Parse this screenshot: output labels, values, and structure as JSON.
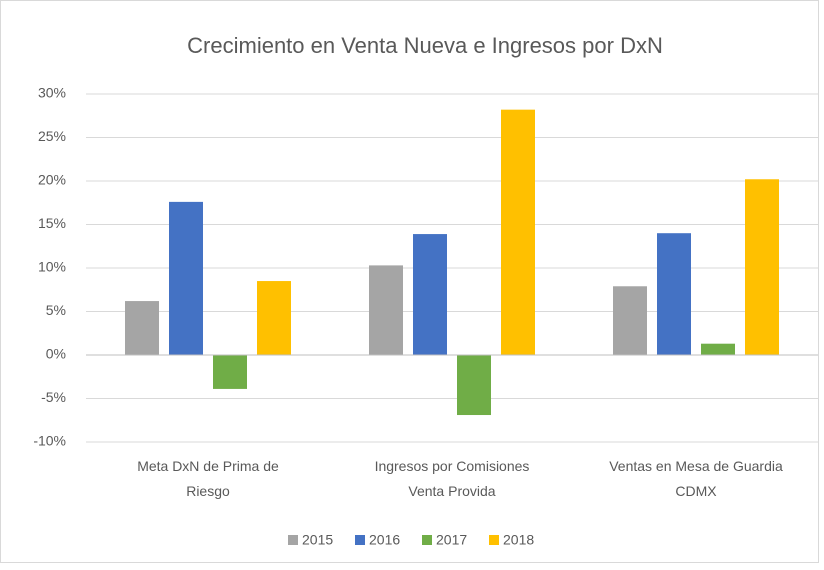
{
  "chart_data": {
    "type": "bar",
    "title": "Crecimiento en Venta Nueva e Ingresos por DxN",
    "categories": [
      "Meta DxN de Prima de Riesgo",
      "Ingresos por Comisiones Venta Provida",
      "Ventas en Mesa de Guardia CDMX"
    ],
    "series": [
      {
        "name": "2015",
        "color": "#a5a5a5",
        "values": [
          6.2,
          10.3,
          7.9
        ]
      },
      {
        "name": "2016",
        "color": "#4472c4",
        "values": [
          17.6,
          13.9,
          14.0
        ]
      },
      {
        "name": "2017",
        "color": "#70ad47",
        "values": [
          -3.9,
          -6.9,
          1.3
        ]
      },
      {
        "name": "2018",
        "color": "#ffc000",
        "values": [
          8.5,
          28.2,
          20.2
        ]
      }
    ],
    "ylim": [
      -10,
      30
    ],
    "yticks": [
      {
        "value": -10,
        "label": "-10%"
      },
      {
        "value": -5,
        "label": "-5%"
      },
      {
        "value": 0,
        "label": "0%"
      },
      {
        "value": 5,
        "label": "5%"
      },
      {
        "value": 10,
        "label": "10%"
      },
      {
        "value": 15,
        "label": "15%"
      },
      {
        "value": 20,
        "label": "20%"
      },
      {
        "value": 25,
        "label": "25%"
      },
      {
        "value": 30,
        "label": "30%"
      }
    ],
    "grid": true,
    "legend": "bottom"
  }
}
